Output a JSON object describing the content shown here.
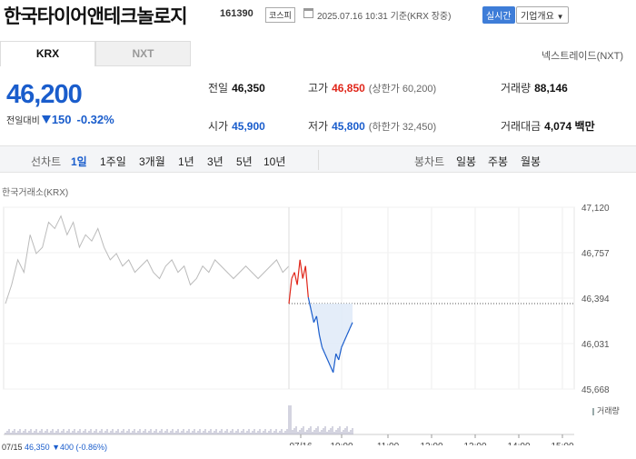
{
  "header": {
    "company_name": "한국타이어앤테크놀로지",
    "stock_code": "161390",
    "market": "코스피",
    "datetime": "2025.07.16 10:31 기준(KRX 장중)",
    "realtime_btn": "실시간",
    "company_info_btn": "기업개요",
    "icon": "calendar-icon"
  },
  "tabs": [
    {
      "label": "KRX"
    },
    {
      "label": "NXT"
    }
  ],
  "nxt_link": "넥스트레이드(NXT)",
  "quote": {
    "price": "46,200",
    "change_label": "전일대비",
    "change_amount": "150",
    "change_pct": "-0.32%"
  },
  "stats": {
    "prev_close": {
      "k": "전일",
      "v": "46,350"
    },
    "high": {
      "k": "고가",
      "v": "46,850",
      "sub": "(상한가 60,200)"
    },
    "volume": {
      "k": "거래량",
      "v": "88,146"
    },
    "open": {
      "k": "시가",
      "v": "45,900"
    },
    "low": {
      "k": "저가",
      "v": "45,800",
      "sub": "(하한가 32,450)"
    },
    "trade_value": {
      "k": "거래대금",
      "v": "4,074 백만"
    }
  },
  "toolbar": {
    "line_label": "선차트",
    "periods": [
      "1일",
      "1주일",
      "3개월",
      "1년",
      "3년",
      "5년",
      "10년"
    ],
    "active_period": "1일",
    "candle_label": "봉차트",
    "candles": [
      "일봉",
      "주봉",
      "월봉"
    ]
  },
  "chart": {
    "exchange_label": "한국거래소(KRX)",
    "y_ticks": [
      "47,120",
      "46,757",
      "46,394",
      "46,031",
      "45,668"
    ],
    "x_ticks": [
      "07/15",
      "07/16",
      "10:00",
      "11:00",
      "12:00",
      "13:00",
      "14:00",
      "15:00"
    ],
    "volume_legend": "거래량",
    "bottom_date": "07/15",
    "bottom_price": "46,350",
    "bottom_change": "▼400 (-0.86%)"
  },
  "chart_data": {
    "type": "line",
    "ylim": [
      45668,
      47120
    ],
    "y_ticks": [
      47120,
      46757,
      46394,
      46031,
      45668
    ],
    "reference_price": 46350,
    "prev_day": [
      46350,
      46500,
      46700,
      46600,
      46900,
      46750,
      46800,
      47000,
      46950,
      47050,
      46900,
      47000,
      46800,
      46900,
      46850,
      46950,
      46800,
      46700,
      46750,
      46650,
      46700,
      46600,
      46650,
      46700,
      46600,
      46550,
      46650,
      46700,
      46600,
      46650,
      46500,
      46550,
      46650,
      46600,
      46700,
      46650,
      46600,
      46550,
      46600,
      46650,
      46600,
      46550,
      46600,
      46650,
      46700,
      46600,
      46650
    ],
    "today": [
      46350,
      46550,
      46600,
      46500,
      46700,
      46550,
      46650,
      46400,
      46300,
      46200,
      46250,
      46100,
      46000,
      45950,
      45900,
      45850,
      45800,
      45950,
      45900,
      46000,
      46050,
      46100,
      46150,
      46200
    ],
    "colors": {
      "up": "#e0261a",
      "down": "#1a5dcc",
      "line": "#bbbbbb"
    }
  }
}
